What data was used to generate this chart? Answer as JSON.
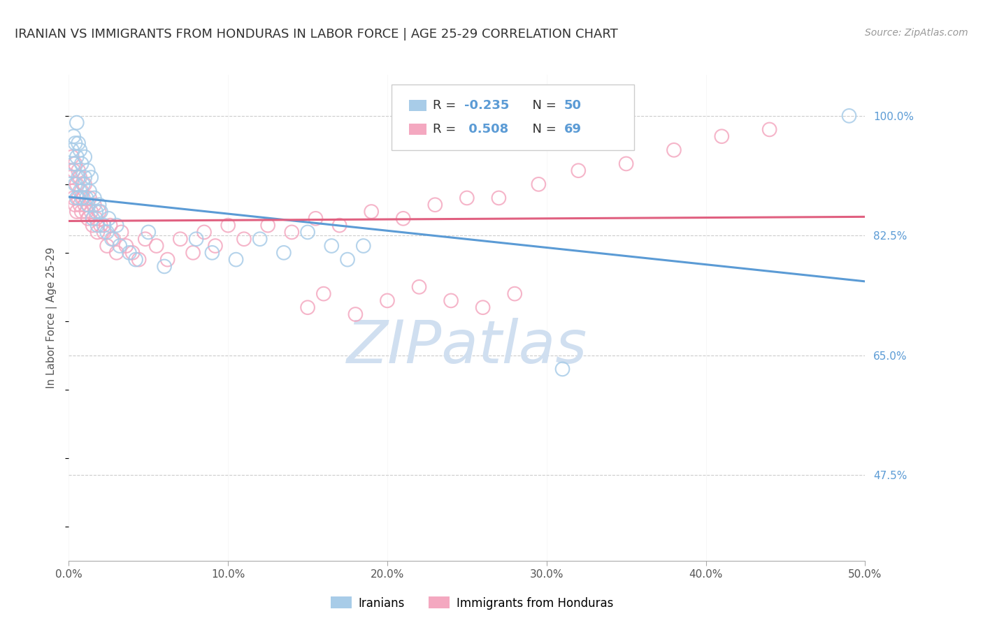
{
  "title": "IRANIAN VS IMMIGRANTS FROM HONDURAS IN LABOR FORCE | AGE 25-29 CORRELATION CHART",
  "source": "Source: ZipAtlas.com",
  "ylabel": "In Labor Force | Age 25-29",
  "xlim": [
    0.0,
    0.5
  ],
  "ylim": [
    0.35,
    1.06
  ],
  "xtick_vals": [
    0.0,
    0.1,
    0.2,
    0.3,
    0.4,
    0.5
  ],
  "xtick_labels": [
    "0.0%",
    "10.0%",
    "20.0%",
    "30.0%",
    "40.0%",
    "50.0%"
  ],
  "ytick_vals": [
    0.475,
    0.65,
    0.825,
    1.0
  ],
  "ytick_labels": [
    "47.5%",
    "65.0%",
    "82.5%",
    "100.0%"
  ],
  "blue_R": -0.235,
  "blue_N": 50,
  "pink_R": 0.508,
  "pink_N": 69,
  "blue_color": "#a8cce8",
  "pink_color": "#f4a8c0",
  "blue_line_color": "#5b9bd5",
  "pink_line_color": "#e06080",
  "legend_label_blue": "Iranians",
  "legend_label_pink": "Immigrants from Honduras",
  "watermark": "ZIPatlas",
  "watermark_color": "#d0dff0",
  "title_fontsize": 13,
  "axis_label_fontsize": 11,
  "tick_fontsize": 11,
  "source_fontsize": 10,
  "background_color": "#ffffff",
  "grid_color": "#cccccc",
  "right_tick_color": "#5b9bd5",
  "blue_scatter_x": [
    0.001,
    0.002,
    0.003,
    0.003,
    0.004,
    0.004,
    0.005,
    0.005,
    0.005,
    0.006,
    0.006,
    0.007,
    0.007,
    0.008,
    0.008,
    0.009,
    0.01,
    0.01,
    0.011,
    0.012,
    0.012,
    0.013,
    0.014,
    0.015,
    0.016,
    0.017,
    0.018,
    0.019,
    0.02,
    0.022,
    0.024,
    0.025,
    0.027,
    0.03,
    0.032,
    0.038,
    0.042,
    0.05,
    0.06,
    0.08,
    0.09,
    0.105,
    0.12,
    0.135,
    0.15,
    0.165,
    0.175,
    0.185,
    0.31,
    0.49
  ],
  "blue_scatter_y": [
    0.92,
    0.95,
    0.93,
    0.97,
    0.9,
    0.96,
    0.88,
    0.94,
    0.99,
    0.91,
    0.96,
    0.89,
    0.95,
    0.88,
    0.93,
    0.9,
    0.91,
    0.94,
    0.88,
    0.87,
    0.92,
    0.89,
    0.91,
    0.85,
    0.88,
    0.86,
    0.84,
    0.87,
    0.86,
    0.84,
    0.83,
    0.85,
    0.82,
    0.84,
    0.81,
    0.8,
    0.79,
    0.83,
    0.78,
    0.82,
    0.8,
    0.79,
    0.82,
    0.8,
    0.83,
    0.81,
    0.79,
    0.81,
    0.63,
    1.0
  ],
  "pink_scatter_x": [
    0.001,
    0.002,
    0.002,
    0.003,
    0.003,
    0.004,
    0.004,
    0.005,
    0.005,
    0.006,
    0.006,
    0.007,
    0.007,
    0.008,
    0.008,
    0.009,
    0.01,
    0.01,
    0.011,
    0.012,
    0.013,
    0.014,
    0.015,
    0.016,
    0.017,
    0.018,
    0.019,
    0.02,
    0.022,
    0.024,
    0.026,
    0.028,
    0.03,
    0.033,
    0.036,
    0.04,
    0.044,
    0.048,
    0.055,
    0.062,
    0.07,
    0.078,
    0.085,
    0.092,
    0.1,
    0.11,
    0.125,
    0.14,
    0.155,
    0.17,
    0.19,
    0.21,
    0.23,
    0.25,
    0.27,
    0.295,
    0.32,
    0.35,
    0.38,
    0.41,
    0.44,
    0.15,
    0.16,
    0.18,
    0.2,
    0.22,
    0.24,
    0.26,
    0.28
  ],
  "pink_scatter_y": [
    0.91,
    0.89,
    0.94,
    0.88,
    0.92,
    0.87,
    0.93,
    0.86,
    0.9,
    0.88,
    0.92,
    0.87,
    0.91,
    0.86,
    0.89,
    0.88,
    0.87,
    0.9,
    0.86,
    0.85,
    0.88,
    0.86,
    0.84,
    0.87,
    0.85,
    0.83,
    0.86,
    0.84,
    0.83,
    0.81,
    0.84,
    0.82,
    0.8,
    0.83,
    0.81,
    0.8,
    0.79,
    0.82,
    0.81,
    0.79,
    0.82,
    0.8,
    0.83,
    0.81,
    0.84,
    0.82,
    0.84,
    0.83,
    0.85,
    0.84,
    0.86,
    0.85,
    0.87,
    0.88,
    0.88,
    0.9,
    0.92,
    0.93,
    0.95,
    0.97,
    0.98,
    0.72,
    0.74,
    0.71,
    0.73,
    0.75,
    0.73,
    0.72,
    0.74
  ]
}
